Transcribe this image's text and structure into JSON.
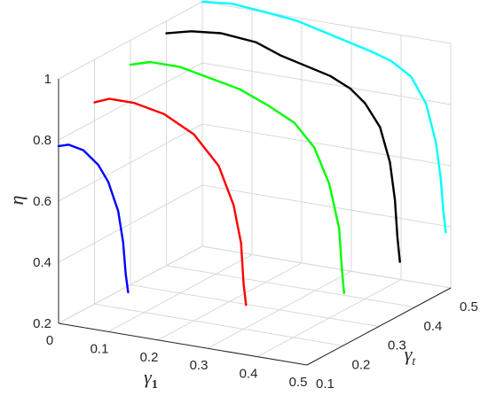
{
  "chart_data": {
    "type": "line3d",
    "zlabel": "η",
    "x_axis": {
      "label": "γ",
      "subscript": "1",
      "range": [
        0,
        0.5
      ],
      "ticks": [
        "0",
        "0.1",
        "0.2",
        "0.3",
        "0.4",
        "0.5"
      ]
    },
    "y_axis": {
      "label": "γ",
      "subscript": "t",
      "range": [
        0.1,
        0.5
      ],
      "ticks": [
        "0.1",
        "0.2",
        "0.3",
        "0.4",
        "0.5"
      ]
    },
    "z_axis": {
      "label": "η",
      "range": [
        0.2,
        1.0
      ],
      "ticks": [
        "0.2",
        "0.4",
        "0.6",
        "0.8",
        "1"
      ]
    },
    "grid": true,
    "series": [
      {
        "color": "#0000ff",
        "gamma_t": 0.1,
        "points": [
          [
            0.0,
            0.78
          ],
          [
            0.02,
            0.79
          ],
          [
            0.05,
            0.78
          ],
          [
            0.08,
            0.74
          ],
          [
            0.1,
            0.69
          ],
          [
            0.12,
            0.6
          ],
          [
            0.13,
            0.5
          ],
          [
            0.135,
            0.4
          ],
          [
            0.14,
            0.34
          ]
        ]
      },
      {
        "color": "#ff0000",
        "gamma_t": 0.2,
        "points": [
          [
            0.0,
            0.86
          ],
          [
            0.03,
            0.88
          ],
          [
            0.08,
            0.88
          ],
          [
            0.14,
            0.86
          ],
          [
            0.2,
            0.81
          ],
          [
            0.25,
            0.72
          ],
          [
            0.28,
            0.6
          ],
          [
            0.295,
            0.48
          ],
          [
            0.3,
            0.35
          ],
          [
            0.305,
            0.28
          ]
        ]
      },
      {
        "color": "#00ff00",
        "gamma_t": 0.3,
        "points": [
          [
            0.0,
            0.92
          ],
          [
            0.04,
            0.94
          ],
          [
            0.1,
            0.94
          ],
          [
            0.16,
            0.92
          ],
          [
            0.22,
            0.9
          ],
          [
            0.28,
            0.86
          ],
          [
            0.33,
            0.82
          ],
          [
            0.37,
            0.75
          ],
          [
            0.4,
            0.64
          ],
          [
            0.42,
            0.5
          ],
          [
            0.425,
            0.38
          ],
          [
            0.43,
            0.29
          ]
        ]
      },
      {
        "color": "#000000",
        "gamma_t": 0.4,
        "points": [
          [
            0.0,
            0.96
          ],
          [
            0.05,
            0.98
          ],
          [
            0.11,
            0.99
          ],
          [
            0.18,
            0.98
          ],
          [
            0.23,
            0.95
          ],
          [
            0.28,
            0.93
          ],
          [
            0.33,
            0.91
          ],
          [
            0.37,
            0.88
          ],
          [
            0.4,
            0.84
          ],
          [
            0.43,
            0.77
          ],
          [
            0.45,
            0.66
          ],
          [
            0.46,
            0.54
          ],
          [
            0.465,
            0.42
          ],
          [
            0.47,
            0.34
          ]
        ]
      },
      {
        "color": "#00ffff",
        "gamma_t": 0.5,
        "points": [
          [
            0.0,
            1.0
          ],
          [
            0.06,
            1.01
          ],
          [
            0.13,
            1.0
          ],
          [
            0.19,
            0.99
          ],
          [
            0.24,
            0.97
          ],
          [
            0.29,
            0.95
          ],
          [
            0.34,
            0.93
          ],
          [
            0.38,
            0.91
          ],
          [
            0.42,
            0.87
          ],
          [
            0.45,
            0.79
          ],
          [
            0.47,
            0.67
          ],
          [
            0.48,
            0.55
          ],
          [
            0.485,
            0.45
          ],
          [
            0.49,
            0.38
          ]
        ]
      }
    ]
  }
}
